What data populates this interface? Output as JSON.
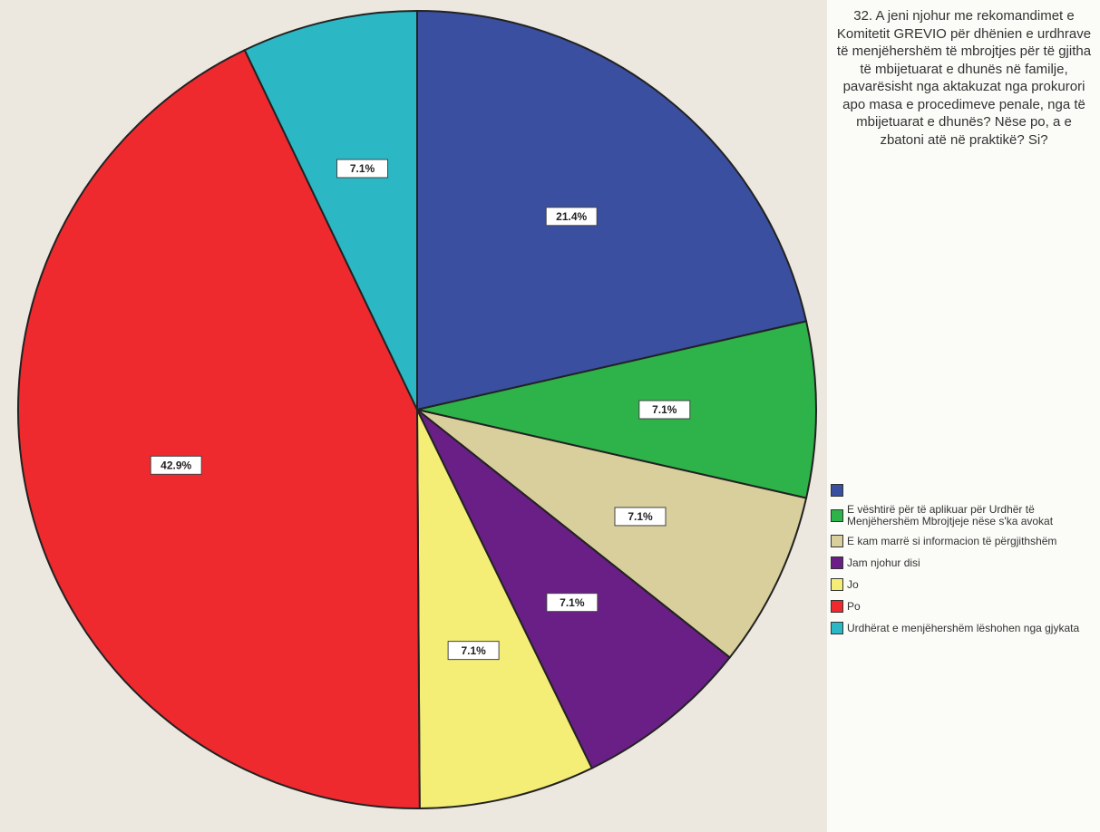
{
  "chart_data": {
    "type": "pie",
    "title": "32. A jeni njohur me rekomandimet e Komitetit GREVIO për dhënien e urdhrave të menjëhershëm të mbrojtjes për të gjitha të mbijetuarat e dhunës në familje, pavarësisht nga aktakuzat nga prokurori apo masa e procedimeve penale, nga të mbijetuarat e dhunës? Nëse po, a e zbatoni atë në praktikë? Si?",
    "categories": [
      null,
      "E vështirë për të aplikuar për Urdhër të Menjëhershëm Mbrojtjeje nëse s'ka avokat",
      "E kam marrë si informacion të përgjithshëm",
      "Jam njohur disi",
      "Jo",
      "Po",
      "Urdhërat e menjëhershëm lëshohen nga gjykata"
    ],
    "values": [
      21.4,
      7.1,
      7.1,
      7.1,
      7.1,
      42.9,
      7.1
    ],
    "value_labels": [
      "21.4%",
      "7.1%",
      "7.1%",
      "7.1%",
      "7.1%",
      "42.9%",
      "7.1%"
    ],
    "colors": [
      "#3a4fa0",
      "#2db34a",
      "#d8cf9c",
      "#6a1f86",
      "#f4ee76",
      "#ee2a2e",
      "#2bb7c4"
    ]
  }
}
